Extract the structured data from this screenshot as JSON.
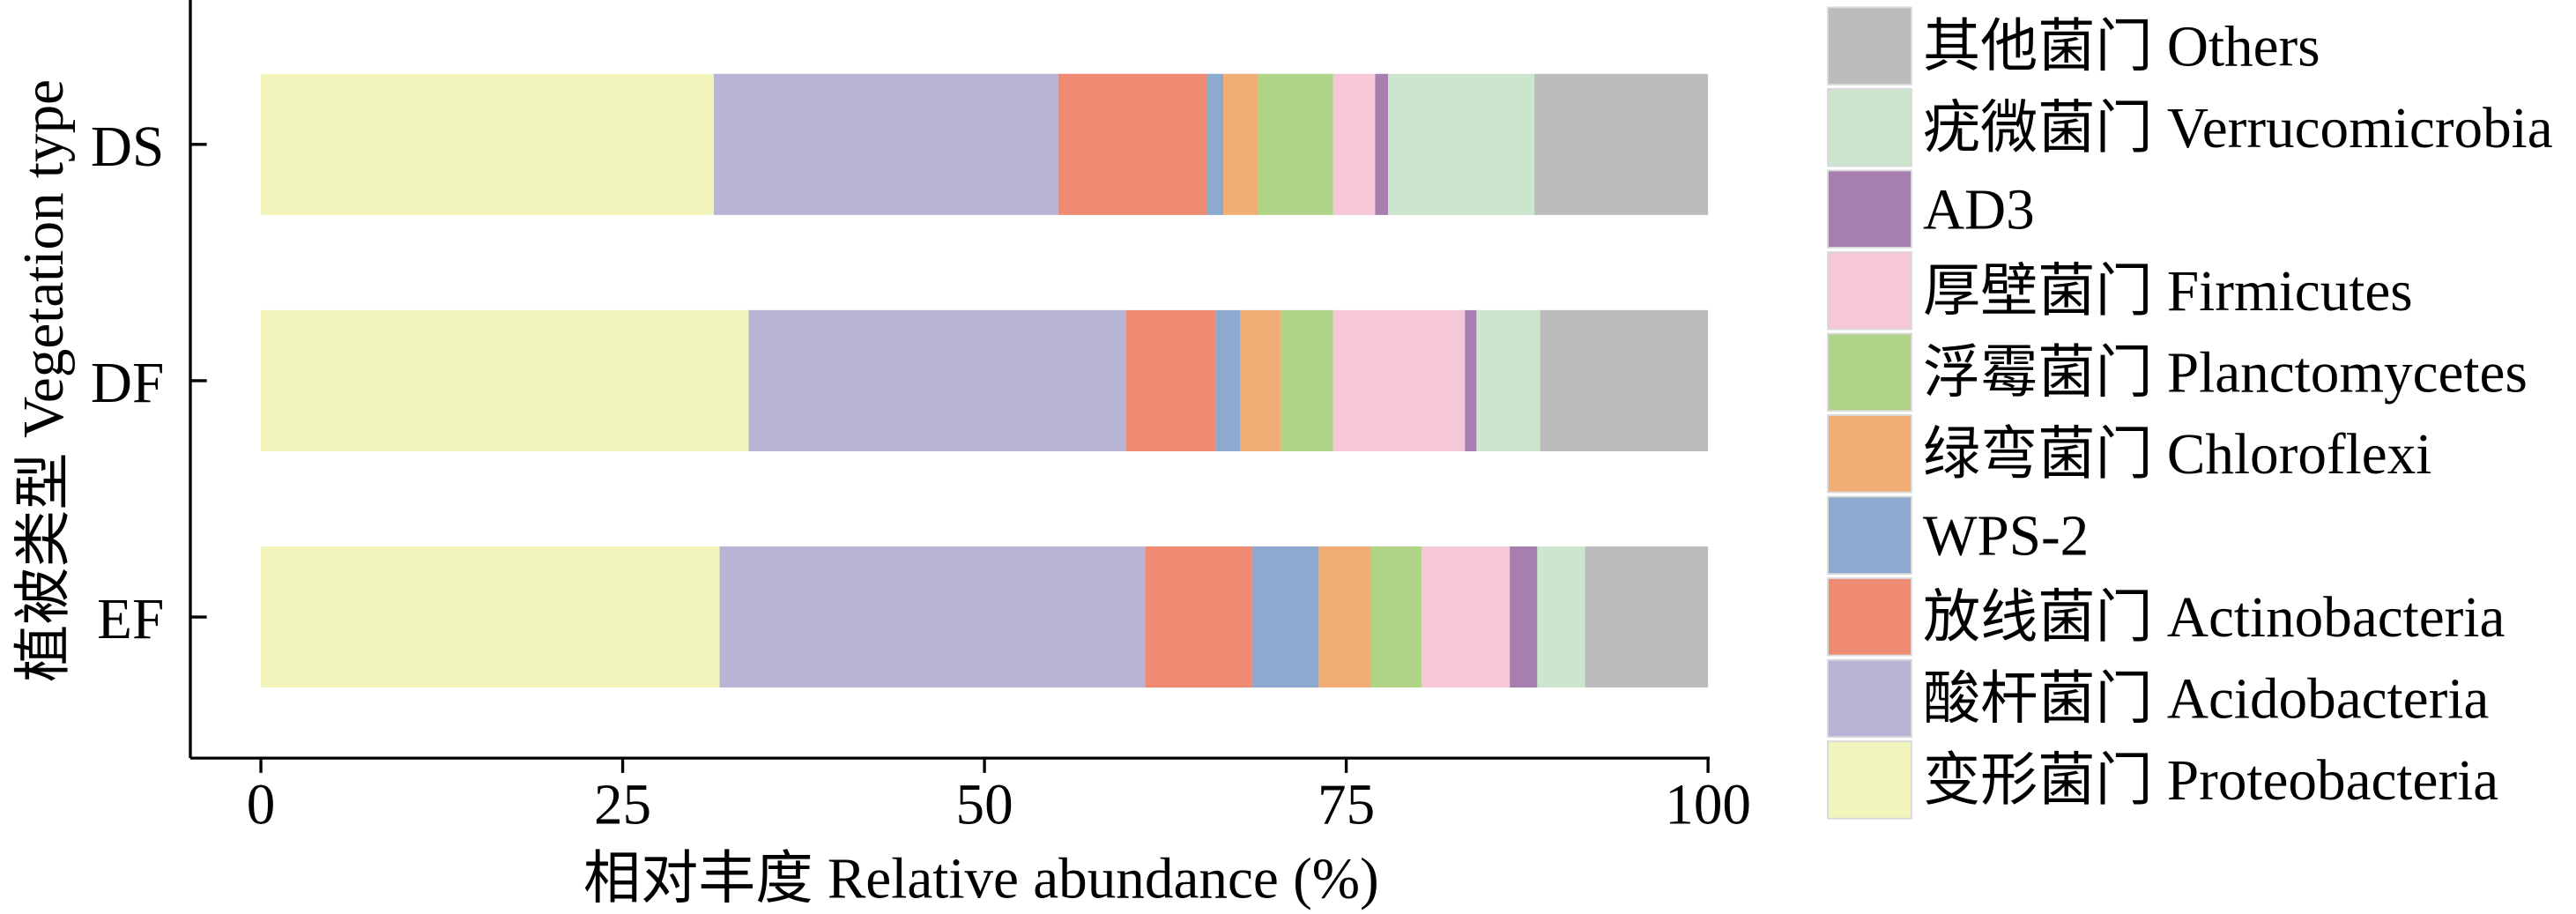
{
  "chart_data": {
    "type": "bar",
    "orientation": "horizontal",
    "stacked": true,
    "title": "",
    "categories": [
      "DS",
      "DF",
      "EF"
    ],
    "series": [
      {
        "name": "变形菌门 Proteobacteria",
        "color": "#f2f5bb",
        "values": [
          31.3,
          33.7,
          31.7
        ]
      },
      {
        "name": "酸杆菌门 Acidobacteria",
        "color": "#b8b4d6",
        "values": [
          23.8,
          26.1,
          29.4
        ]
      },
      {
        "name": "放线菌门 Actinobacteria",
        "color": "#ef8a73",
        "values": [
          10.3,
          6.2,
          7.4
        ]
      },
      {
        "name": "WPS-2",
        "color": "#8da9cf",
        "values": [
          1.1,
          1.7,
          4.6
        ]
      },
      {
        "name": "绿弯菌门 Chloroflexi",
        "color": "#f0ad76",
        "values": [
          2.4,
          2.8,
          3.6
        ]
      },
      {
        "name": "浮霉菌门 Planctomycetes",
        "color": "#afd487",
        "values": [
          5.2,
          3.6,
          3.5
        ]
      },
      {
        "name": "厚壁菌门 Firmicutes",
        "color": "#f6c7d8",
        "values": [
          2.9,
          9.1,
          6.1
        ]
      },
      {
        "name": "AD3",
        "color": "#a67eb0",
        "values": [
          0.9,
          0.8,
          1.9
        ]
      },
      {
        "name": "疣微菌门 Verrucomicrobia",
        "color": "#cce6cd",
        "values": [
          10.1,
          4.4,
          3.3
        ]
      },
      {
        "name": "其他菌门 Others",
        "color": "#bdbbbd",
        "values": [
          12.0,
          11.6,
          8.5
        ]
      }
    ],
    "xlabel": "相对丰度 Relative abundance (%)",
    "ylabel": "植被类型 Vegetation type",
    "xlim": [
      0,
      100
    ],
    "xticks": [
      0,
      25,
      50,
      75,
      100
    ],
    "grid": false,
    "legend": {
      "position": "right",
      "order": "reversed"
    }
  }
}
